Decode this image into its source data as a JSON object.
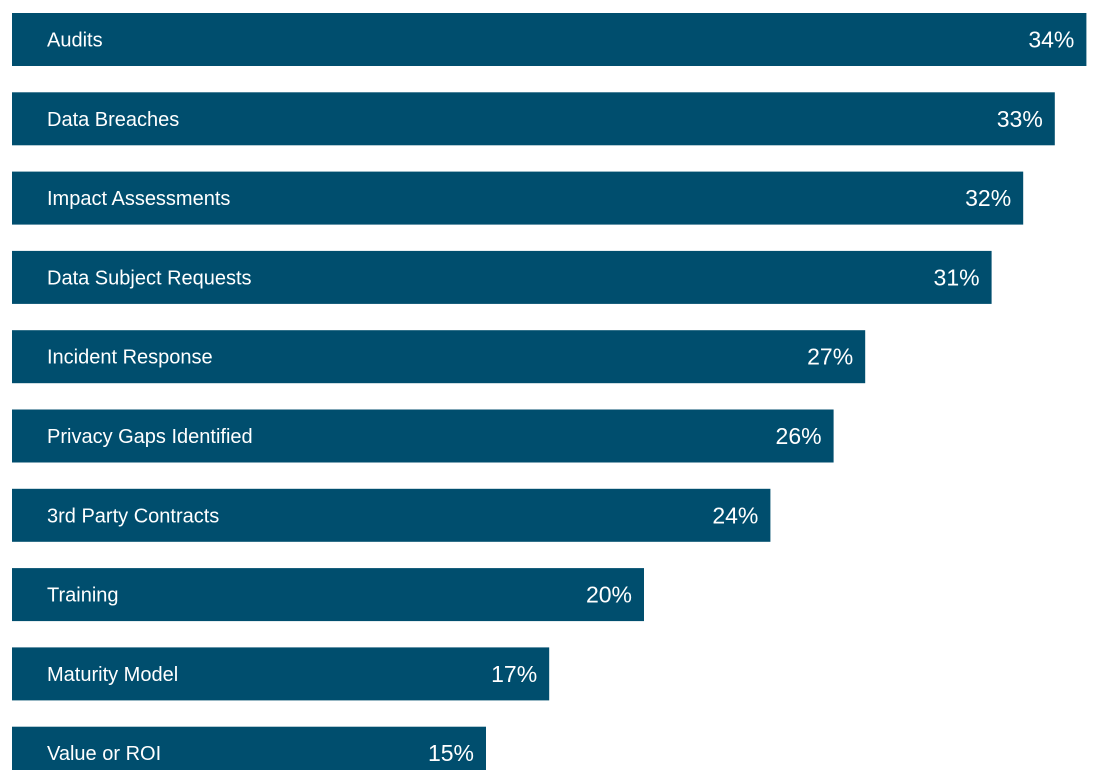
{
  "chart_data": {
    "type": "bar",
    "orientation": "horizontal",
    "categories": [
      "Audits",
      "Data Breaches",
      "Impact Assessments",
      "Data Subject Requests",
      "Incident Response",
      "Privacy Gaps Identified",
      "3rd Party Contracts",
      "Training",
      "Maturity Model",
      "Value or ROI"
    ],
    "values": [
      34,
      33,
      32,
      31,
      27,
      26,
      24,
      20,
      17,
      15
    ],
    "value_labels": [
      "34%",
      "33%",
      "32%",
      "31%",
      "27%",
      "26%",
      "24%",
      "20%",
      "17%",
      "15%"
    ],
    "bar_color": "#004e6e",
    "text_color": "#ffffff",
    "grid": false,
    "legend": "none"
  }
}
